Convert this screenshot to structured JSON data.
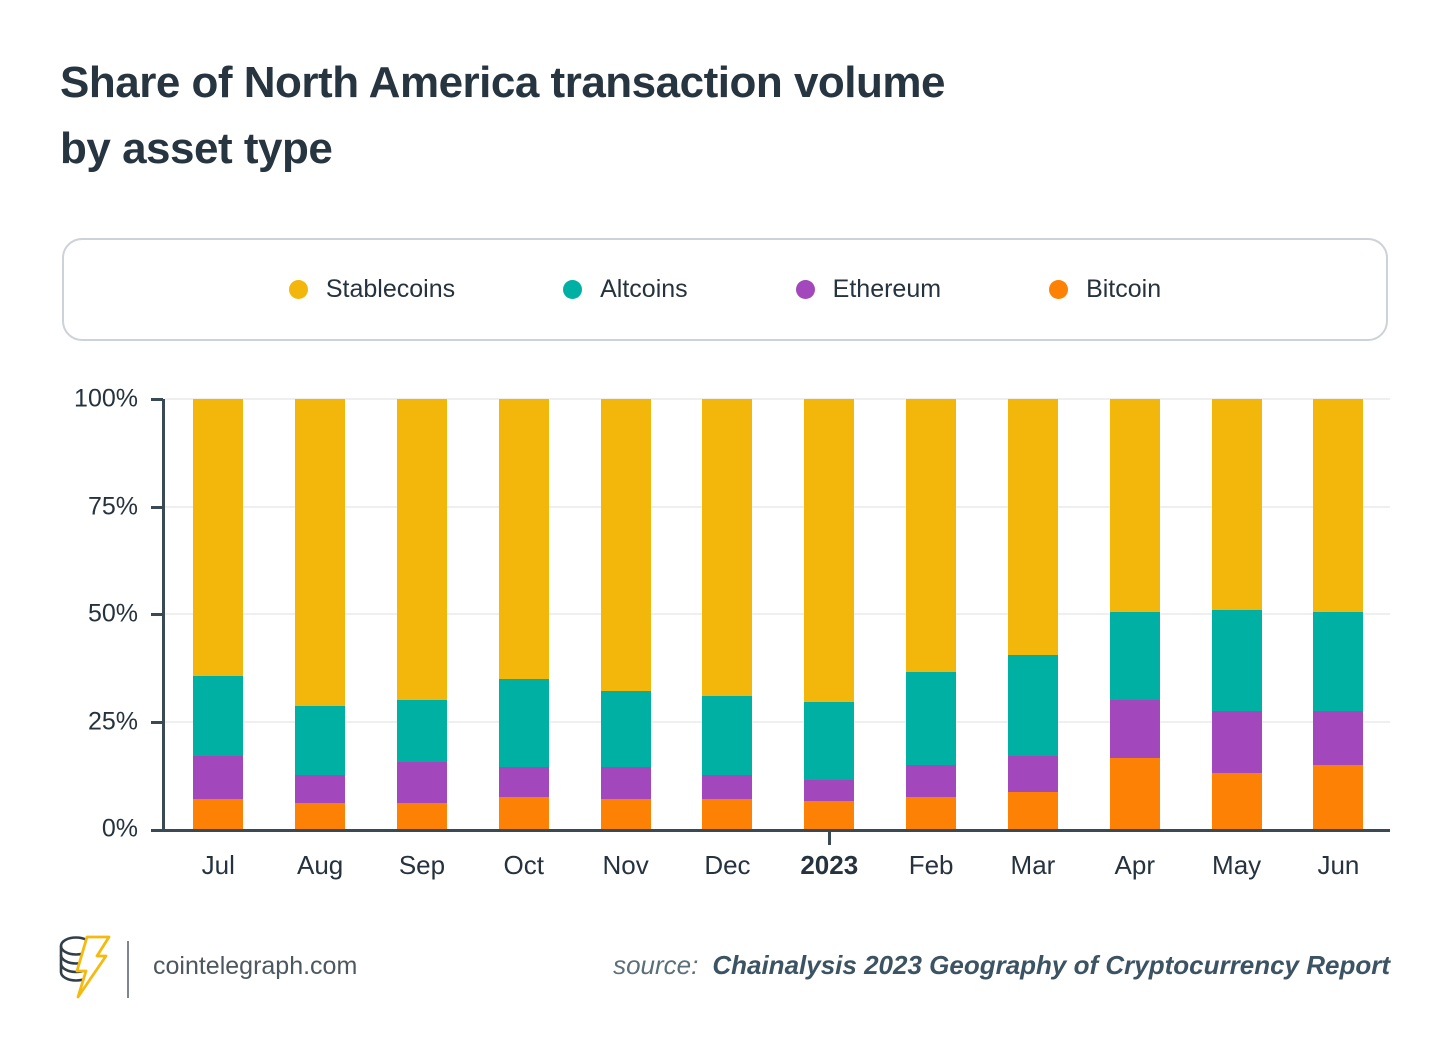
{
  "title": {
    "line1": "Share of North America transaction volume",
    "line2": "by asset type"
  },
  "legend": {
    "items": [
      {
        "label": "Stablecoins",
        "color": "#f3b70b"
      },
      {
        "label": "Altcoins",
        "color": "#00b1a3"
      },
      {
        "label": "Ethereum",
        "color": "#a248bc"
      },
      {
        "label": "Bitcoin",
        "color": "#fc8104"
      }
    ]
  },
  "chart_data": {
    "type": "bar",
    "stacked": true,
    "title": "Share of North America transaction volume by asset type",
    "categories": [
      "Jul",
      "Aug",
      "Sep",
      "Oct",
      "Nov",
      "Dec",
      "2023",
      "Feb",
      "Mar",
      "Apr",
      "May",
      "Jun"
    ],
    "emphasized_category": "2023",
    "series": [
      {
        "name": "Bitcoin",
        "color": "#fc8104",
        "values": [
          7,
          6,
          6,
          7.5,
          7,
          7,
          6.5,
          7.5,
          8.5,
          16.5,
          13,
          15
        ]
      },
      {
        "name": "Ethereum",
        "color": "#a248bc",
        "values": [
          10,
          6.5,
          9.5,
          7,
          7.5,
          5.5,
          5,
          7.5,
          8.5,
          13.5,
          14.5,
          12.5
        ]
      },
      {
        "name": "Altcoins",
        "color": "#00b1a3",
        "values": [
          18.5,
          16,
          14.5,
          20.5,
          17.5,
          18.5,
          18,
          21.5,
          23.5,
          20.5,
          23.5,
          23
        ]
      },
      {
        "name": "Stablecoins",
        "color": "#f3b70b",
        "values": [
          64.5,
          71.5,
          70,
          65,
          68,
          69,
          70.5,
          63.5,
          59.5,
          49.5,
          49,
          49.5
        ]
      }
    ],
    "stack_order_bottom_to_top": [
      "Bitcoin",
      "Ethereum",
      "Altcoins",
      "Stablecoins"
    ],
    "y_axis": {
      "min": 0,
      "max": 100,
      "ticks": [
        "0%",
        "25%",
        "50%",
        "75%",
        "100%"
      ],
      "unit": "%"
    },
    "xlabel": "",
    "ylabel": "",
    "grid": true,
    "legend_position": "top",
    "colors": {
      "axis": "#3a4a55",
      "grid": "#efefef",
      "text": "#26333e"
    }
  },
  "footer": {
    "site": "cointelegraph.com",
    "source_label": "source:",
    "source_text": "Chainalysis 2023 Geography of Cryptocurrency Report"
  }
}
